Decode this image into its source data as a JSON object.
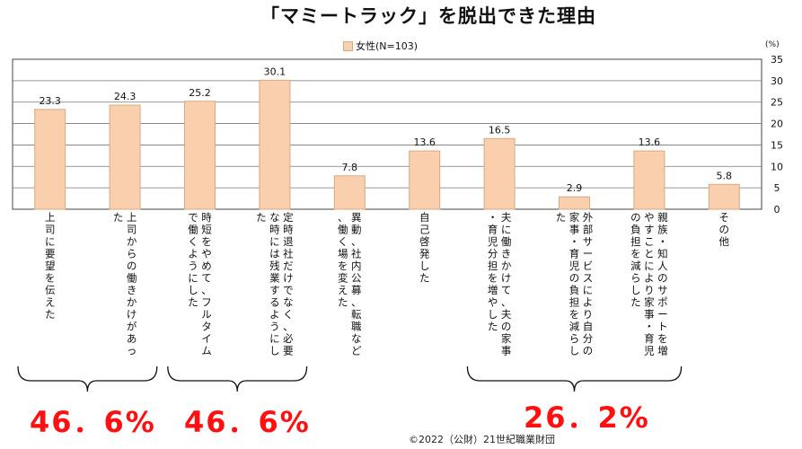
{
  "title": "「マミートラック」を脱出できた理由",
  "legend": {
    "label": "女性(N=103)",
    "color": "#f9cfae"
  },
  "unit_label": "(%)",
  "chart_data": {
    "type": "bar",
    "title": "「マミートラック」を脱出できた理由",
    "categories": [
      "上司に要望を伝えた",
      "上司からの働きかけがあった",
      "時短をやめて、フルタイムで働くようにした",
      "定時退社だけでなく、必要な時には残業するようにした",
      "異動、社内公募、転職など、働く場を変えた",
      "自己啓発した",
      "夫に働きかけて、夫の家事・育児分担を増やした",
      "外部サービスにより自分の家事・育児の負担を減らした",
      "親族・知人のサポートを増やすことにより家事・育児の負担を減らした",
      "その他"
    ],
    "series": [
      {
        "name": "女性(N=103)",
        "values": [
          23.3,
          24.3,
          25.2,
          30.1,
          7.8,
          13.6,
          16.5,
          2.9,
          13.6,
          5.8
        ]
      }
    ],
    "value_labels": [
      "23.3",
      "24.3",
      "25.2",
      "30.1",
      "7.8",
      "13.6",
      "16.5",
      "2.9",
      "13.6",
      "5.8"
    ],
    "ylim": [
      0,
      35
    ],
    "yticks": [
      0,
      5,
      10,
      15,
      20,
      25,
      30,
      35
    ],
    "grid": true,
    "legend_position": "top-center",
    "bar_color": "#f9cfae",
    "bar_border": "#d9a980"
  },
  "groups": [
    {
      "from": 0,
      "to": 1,
      "label": "46．6%"
    },
    {
      "from": 2,
      "to": 3,
      "label": "46．6%"
    },
    {
      "from": 6,
      "to": 8,
      "label": "26．2%"
    }
  ],
  "copyright": "©2022（公財）21世紀職業財団"
}
